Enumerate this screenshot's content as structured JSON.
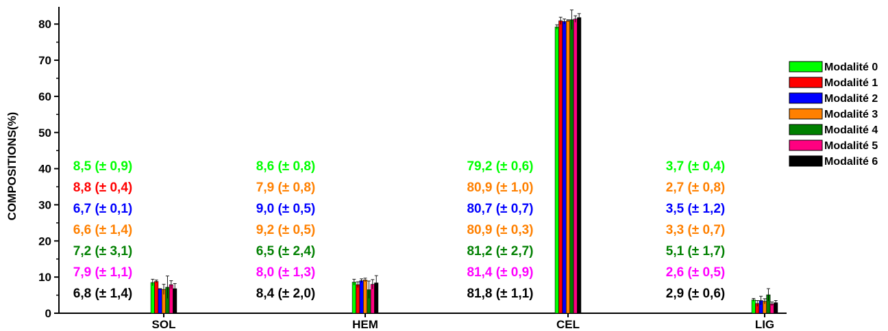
{
  "chart_data": {
    "type": "bar",
    "xlabel": "",
    "ylabel": "COMPOSITIONS(%)",
    "ylim": [
      0,
      85
    ],
    "yticks": [
      0,
      10,
      20,
      30,
      40,
      50,
      60,
      70,
      80
    ],
    "categories": [
      "SOL",
      "HEM",
      "CEL",
      "LIG"
    ],
    "legend_position": "right",
    "series": [
      {
        "name": "Modalité 0",
        "color": "#00ff00",
        "values": [
          8.5,
          8.6,
          79.2,
          3.7
        ],
        "errors": [
          0.9,
          0.8,
          0.6,
          0.4
        ]
      },
      {
        "name": "Modalité 1",
        "color": "#ff0000",
        "values": [
          8.8,
          7.9,
          80.9,
          2.7
        ],
        "errors": [
          0.4,
          0.8,
          1.0,
          0.8
        ]
      },
      {
        "name": "Modalité 2",
        "color": "#0000ff",
        "values": [
          6.7,
          9.0,
          80.7,
          3.5
        ],
        "errors": [
          0.1,
          0.5,
          0.7,
          1.2
        ]
      },
      {
        "name": "Modalité 3",
        "color": "#ff8000",
        "values": [
          6.6,
          9.2,
          80.9,
          3.3
        ],
        "errors": [
          1.4,
          0.5,
          0.3,
          0.7
        ]
      },
      {
        "name": "Modalité 4",
        "color": "#008000",
        "values": [
          7.2,
          6.5,
          81.2,
          5.1
        ],
        "errors": [
          3.1,
          2.4,
          2.7,
          1.7
        ]
      },
      {
        "name": "Modalité 5",
        "color": "#ff0080",
        "values": [
          7.9,
          8.0,
          81.4,
          2.6
        ],
        "errors": [
          1.1,
          1.3,
          0.9,
          0.5
        ]
      },
      {
        "name": "Modalité 6",
        "color": "#000000",
        "values": [
          6.8,
          8.4,
          81.8,
          2.9
        ],
        "errors": [
          1.4,
          2.0,
          1.1,
          0.6
        ]
      }
    ],
    "annotations": [
      [
        {
          "text": "8,5 (± 0,9)",
          "color": "#00ff00"
        },
        {
          "text": "8,8 (± 0,4)",
          "color": "#ff0000"
        },
        {
          "text": "6,7 (± 0,1)",
          "color": "#0000ff"
        },
        {
          "text": "6,6 (± 1,4)",
          "color": "#ff8000"
        },
        {
          "text": "7,2 (± 3,1)",
          "color": "#008000"
        },
        {
          "text": "7,9 (± 1,1)",
          "color": "#ff00ff"
        },
        {
          "text": "6,8 (± 1,4)",
          "color": "#000000"
        }
      ],
      [
        {
          "text": "8,6 (± 0,8)",
          "color": "#00ff00"
        },
        {
          "text": "7,9 (± 0,8)",
          "color": "#ff8000"
        },
        {
          "text": "9,0 (± 0,5)",
          "color": "#0000ff"
        },
        {
          "text": "9,2 (± 0,5)",
          "color": "#ff8000"
        },
        {
          "text": "6,5 (± 2,4)",
          "color": "#008000"
        },
        {
          "text": "8,0 (± 1,3)",
          "color": "#ff00ff"
        },
        {
          "text": "8,4 (± 2,0)",
          "color": "#000000"
        }
      ],
      [
        {
          "text": "79,2 (± 0,6)",
          "color": "#00ff00"
        },
        {
          "text": "80,9 (± 1,0)",
          "color": "#ff8000"
        },
        {
          "text": "80,7 (± 0,7)",
          "color": "#0000ff"
        },
        {
          "text": "80,9 (± 0,3)",
          "color": "#ff8000"
        },
        {
          "text": "81,2 (± 2,7)",
          "color": "#008000"
        },
        {
          "text": "81,4 (± 0,9)",
          "color": "#ff00ff"
        },
        {
          "text": "81,8 (± 1,1)",
          "color": "#000000"
        }
      ],
      [
        {
          "text": "3,7 (± 0,4)",
          "color": "#00ff00"
        },
        {
          "text": "2,7 (± 0,8)",
          "color": "#ff8000"
        },
        {
          "text": "3,5 (± 1,2)",
          "color": "#0000ff"
        },
        {
          "text": "3,3 (± 0,7)",
          "color": "#ff8000"
        },
        {
          "text": "5,1 (± 1,7)",
          "color": "#008000"
        },
        {
          "text": "2,6 (± 0,5)",
          "color": "#ff00ff"
        },
        {
          "text": "2,9 (± 0,6)",
          "color": "#000000"
        }
      ]
    ]
  }
}
